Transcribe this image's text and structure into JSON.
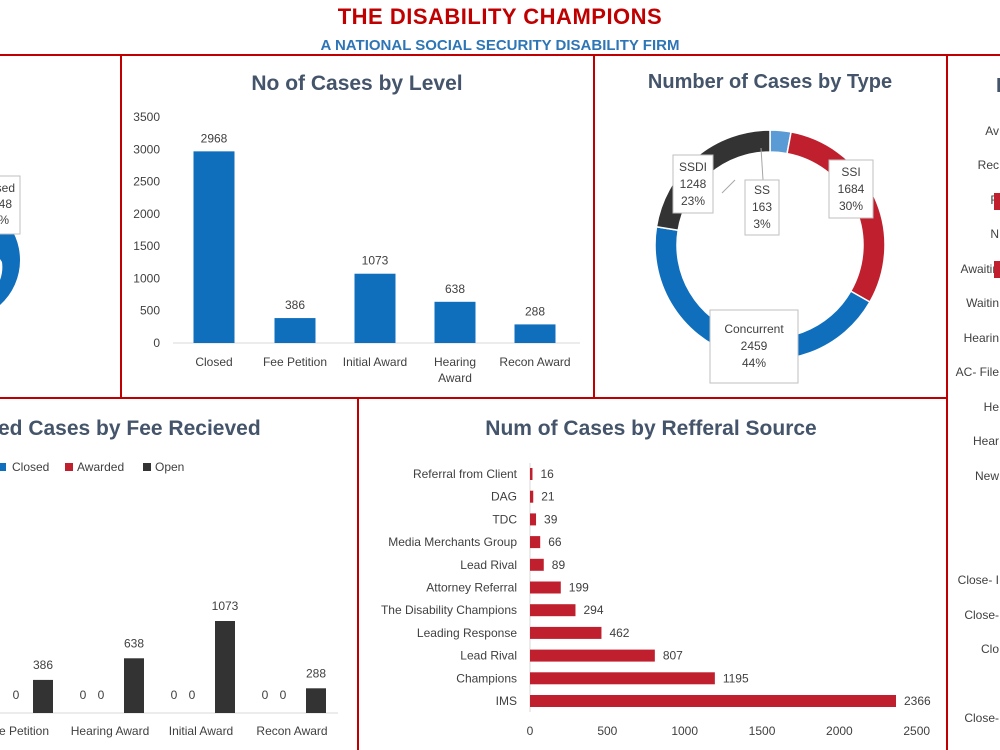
{
  "header": {
    "title": "THE DISABILITY CHAMPIONS",
    "subtitle": "A NATIONAL SOCIAL SECURITY DISABILITY FIRM"
  },
  "colors": {
    "blue": "#0f6fbd",
    "red": "#c0202e",
    "dark": "#333333",
    "light_blue": "#5b9bd5",
    "frame": "#c00000"
  },
  "left_partial": {
    "label_lines": [
      "sed",
      "48",
      "%"
    ]
  },
  "right_partial": {
    "title_fragment": "I",
    "labels": [
      "Av",
      "Rec",
      "R",
      "N",
      "Awaitin",
      "Waitin",
      "Hearin",
      "AC- File",
      "He",
      "Hear",
      "New",
      "Close- I",
      "Close-",
      "Clo",
      "Close-"
    ]
  },
  "chart_data": [
    {
      "id": "level",
      "type": "bar",
      "title": "No of Cases by Level",
      "categories": [
        "Closed",
        "Fee Petition",
        "Initial Award",
        "Hearing Award",
        "Recon Award"
      ],
      "category_lines": [
        [
          "Closed"
        ],
        [
          "Fee Petition"
        ],
        [
          "Initial Award"
        ],
        [
          "Hearing",
          "Award"
        ],
        [
          "Recon Award"
        ]
      ],
      "values": [
        2968,
        386,
        1073,
        638,
        288
      ],
      "ylim": [
        0,
        3500
      ],
      "yticks": [
        0,
        500,
        1000,
        1500,
        2000,
        2500,
        3000,
        3500
      ],
      "grid": false
    },
    {
      "id": "type",
      "type": "pie",
      "title": "Number of Cases by Type",
      "slices": [
        {
          "name": "SS",
          "value": 163,
          "pct": "3%"
        },
        {
          "name": "SSI",
          "value": 1684,
          "pct": "30%"
        },
        {
          "name": "Concurrent",
          "value": 2459,
          "pct": "44%"
        },
        {
          "name": "SSDI",
          "value": 1248,
          "pct": "23%"
        }
      ]
    },
    {
      "id": "fee",
      "type": "bar",
      "title_fragment": "ed Cases by Fee Recieved",
      "legend": [
        "Closed",
        "Awarded",
        "Open"
      ],
      "categories": [
        "e Petition",
        "Hearing Award",
        "Initial Award",
        "Recon Award"
      ],
      "series": [
        {
          "name": "Closed",
          "values": [
            null,
            null,
            null,
            null
          ]
        },
        {
          "name": "Awarded",
          "values": [
            0,
            0,
            0,
            0
          ]
        },
        {
          "name": "Open",
          "values": [
            386,
            638,
            1073,
            288
          ]
        }
      ],
      "first_group_values": [
        0,
        386
      ],
      "ylim": [
        0,
        3500
      ]
    },
    {
      "id": "referral",
      "type": "bar",
      "orientation": "horizontal",
      "title": "Num of Cases by Refferal Source",
      "categories": [
        "Referral from Client",
        "DAG",
        "TDC",
        "Media Merchants Group",
        "Lead Rival",
        "Attorney Referral",
        "The Disability Champions",
        "Leading Response",
        "Lead Rival",
        "Champions",
        "IMS"
      ],
      "values": [
        16,
        21,
        39,
        66,
        89,
        199,
        294,
        462,
        807,
        1195,
        2366
      ],
      "xlim": [
        0,
        2500
      ],
      "xticks": [
        0,
        500,
        1000,
        1500,
        2000,
        2500
      ]
    }
  ]
}
